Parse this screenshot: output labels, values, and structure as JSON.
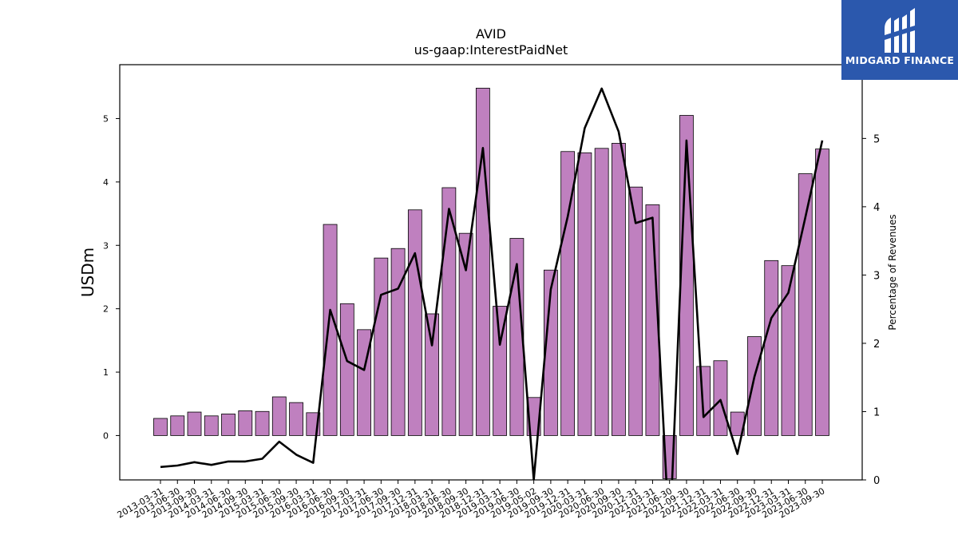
{
  "logo": {
    "text": "MIDGARD FINANCE"
  },
  "chart_data": {
    "type": "bar",
    "title": "AVID",
    "subtitle": "us-gaap:InterestPaidNet",
    "ylabel": "USDm",
    "y2label": "Percentage of Revenues",
    "ylim": [
      -0.7,
      5.85
    ],
    "y2lim": [
      0,
      6.08
    ],
    "yticks": [
      0,
      1,
      2,
      3,
      4,
      5
    ],
    "y2ticks": [
      0,
      1,
      2,
      3,
      4,
      5
    ],
    "bar_color": "#bf80bf",
    "line_color": "#000000",
    "categories": [
      "2013-03-31",
      "2013-06-30",
      "2013-09-30",
      "2014-03-31",
      "2014-06-30",
      "2014-09-30",
      "2015-03-31",
      "2015-06-30",
      "2015-09-30",
      "2016-03-31",
      "2016-06-30",
      "2016-09-30",
      "2017-03-31",
      "2017-06-30",
      "2017-09-30",
      "2017-12-31",
      "2018-03-31",
      "2018-06-30",
      "2018-09-30",
      "2018-12-31",
      "2019-03-31",
      "2019-06-30",
      "2019-05-02",
      "2019-09-30",
      "2019-12-31",
      "2020-03-31",
      "2020-06-30",
      "2020-09-30",
      "2020-12-31",
      "2021-03-31",
      "2021-06-30",
      "2021-09-30",
      "2021-12-31",
      "2022-03-31",
      "2022-06-30",
      "2022-09-30",
      "2022-12-31",
      "2023-03-31",
      "2023-06-30",
      "2023-09-30"
    ],
    "series": [
      {
        "type": "bar",
        "axis": "left",
        "values": [
          0.27,
          0.31,
          0.37,
          0.31,
          0.34,
          0.39,
          0.38,
          0.61,
          0.52,
          0.36,
          3.33,
          2.08,
          1.67,
          2.8,
          2.95,
          3.56,
          1.92,
          3.91,
          3.19,
          5.48,
          2.04,
          3.11,
          0.6,
          2.61,
          4.48,
          4.46,
          4.53,
          4.61,
          3.92,
          3.64,
          -0.68,
          5.05,
          1.09,
          1.18,
          0.37,
          1.56,
          2.76,
          2.68,
          4.13,
          4.52
        ]
      },
      {
        "type": "line",
        "axis": "right",
        "values": [
          0.19,
          0.21,
          0.26,
          0.22,
          0.27,
          0.27,
          0.31,
          0.56,
          0.37,
          0.25,
          2.49,
          1.74,
          1.61,
          2.71,
          2.8,
          3.32,
          1.97,
          3.97,
          3.07,
          4.86,
          1.98,
          3.16,
          0.0,
          2.79,
          3.86,
          5.15,
          5.73,
          5.1,
          3.76,
          3.84,
          -0.9,
          4.97,
          0.92,
          1.17,
          0.38,
          1.51,
          2.37,
          2.74,
          3.84,
          4.97
        ]
      }
    ]
  }
}
